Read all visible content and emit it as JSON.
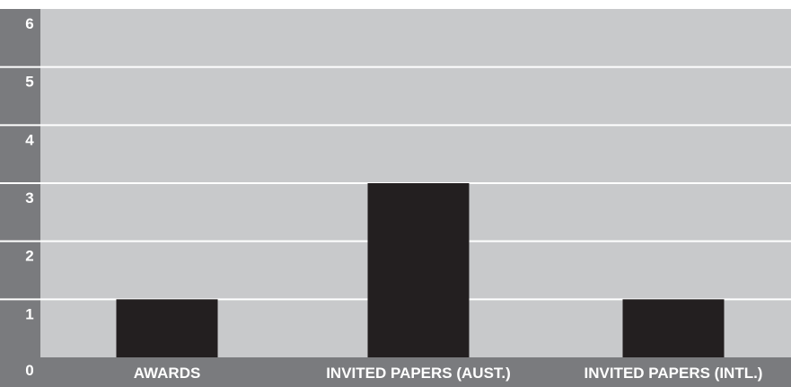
{
  "chart_data": {
    "type": "bar",
    "title": "",
    "xlabel": "",
    "ylabel": "",
    "categories": [
      "AWARDS",
      "INVITED PAPERS (AUST.)",
      "INVITED PAPERS (INTL.)"
    ],
    "values": [
      1,
      3,
      1
    ],
    "ylim": [
      0,
      6
    ],
    "yticks": [
      "0",
      "1",
      "2",
      "3",
      "4",
      "5",
      "6"
    ],
    "grid": true,
    "colors": {
      "bar": "#231f20",
      "plot_background": "#c8c9cb",
      "axis_band": "#7a7b7e",
      "gridline": "#ffffff",
      "label_text": "#ffffff"
    }
  }
}
